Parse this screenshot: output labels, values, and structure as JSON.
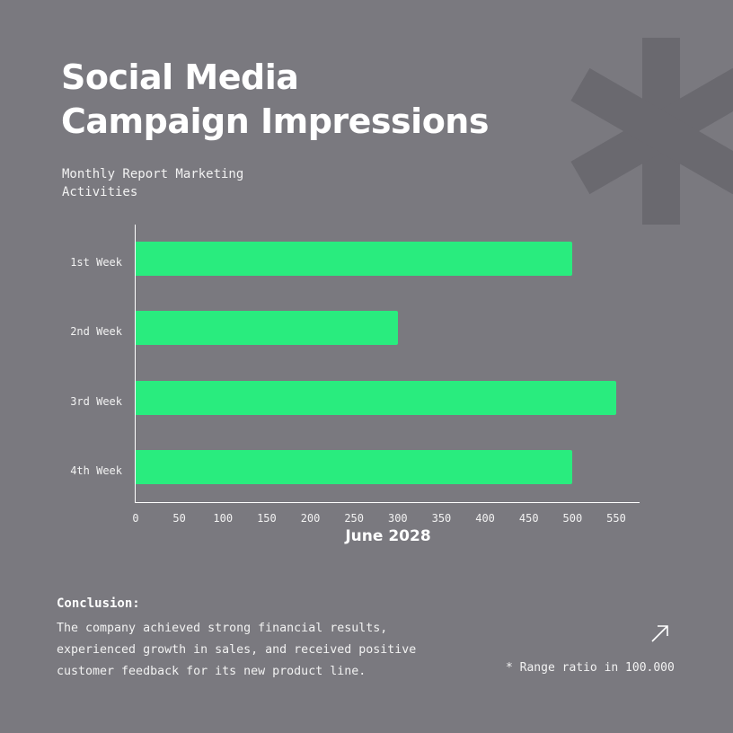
{
  "header": {
    "title_line1": "Social Media",
    "title_line2": "Campaign Impressions",
    "subtitle": "Monthly Report Marketing Activities"
  },
  "colors": {
    "background": "#7a797f",
    "bar": "#29ec7e",
    "decor_asterisk": "#6a696f",
    "text": "#ffffff"
  },
  "chart_data": {
    "type": "bar",
    "orientation": "horizontal",
    "title": "Social Media Campaign Impressions",
    "subtitle": "Monthly Report Marketing Activities",
    "categories": [
      "1st Week",
      "2nd Week",
      "3rd Week",
      "4th Week"
    ],
    "values": [
      500,
      300,
      550,
      500
    ],
    "xlabel": "June 2028",
    "ylabel": "",
    "xlim": [
      0,
      575
    ],
    "x_ticks": [
      "0",
      "50",
      "100",
      "150",
      "200",
      "250",
      "300",
      "350",
      "400",
      "450",
      "500",
      "550"
    ],
    "grid": false,
    "legend": null,
    "annotation": "* Range ratio in 100.000"
  },
  "conclusion": {
    "title": "Conclusion:",
    "body": "The company achieved strong financial results, experienced growth in sales, and received positive customer feedback for its new product line."
  },
  "footnote": "* Range ratio in 100.000",
  "icons": {
    "decor": "asterisk-icon",
    "link": "arrow-up-right-icon"
  }
}
